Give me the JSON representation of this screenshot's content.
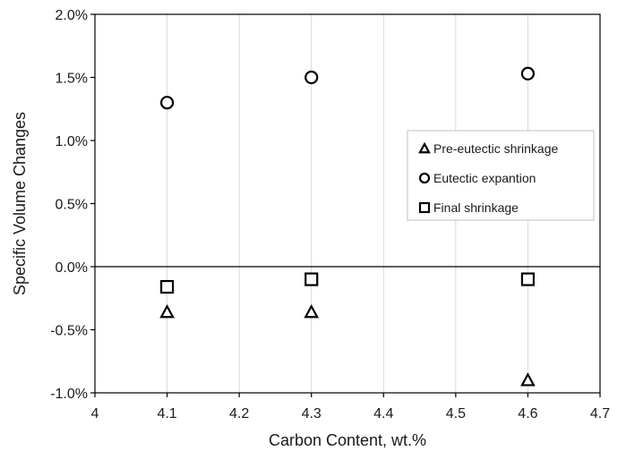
{
  "chart_data": {
    "type": "scatter",
    "xlabel": "Carbon Content, wt.%",
    "ylabel": "Specific Volume Changes",
    "xlim": [
      4,
      4.7
    ],
    "ylim": [
      -0.01,
      0.02
    ],
    "x_ticks": [
      4,
      4.1,
      4.2,
      4.3,
      4.4,
      4.5,
      4.6,
      4.7
    ],
    "x_tick_labels": [
      "4",
      "4.1",
      "4.2",
      "4.3",
      "4.4",
      "4.5",
      "4.6",
      "4.7"
    ],
    "y_ticks": [
      -0.01,
      -0.005,
      0,
      0.005,
      0.01,
      0.015,
      0.02
    ],
    "y_tick_labels": [
      "-1.0%",
      "-0.5%",
      "0.0%",
      "0.5%",
      "1.0%",
      "1.5%",
      "2.0%"
    ],
    "grid": "vertical",
    "legend_position": "right",
    "series": [
      {
        "name": "Pre-eutectic shrinkage",
        "marker": "triangle",
        "x": [
          4.1,
          4.3,
          4.6
        ],
        "y": [
          -0.0036,
          -0.0036,
          -0.009
        ]
      },
      {
        "name": "Eutectic expantion",
        "marker": "circle",
        "x": [
          4.1,
          4.3,
          4.6
        ],
        "y": [
          0.013,
          0.015,
          0.0153
        ]
      },
      {
        "name": "Final shrinkage",
        "marker": "square",
        "x": [
          4.1,
          4.3,
          4.6
        ],
        "y": [
          -0.0016,
          -0.001,
          -0.001
        ]
      }
    ],
    "colors": {
      "marker": "#000000",
      "grid": "#d9d9d9",
      "axis": "#000000"
    }
  }
}
